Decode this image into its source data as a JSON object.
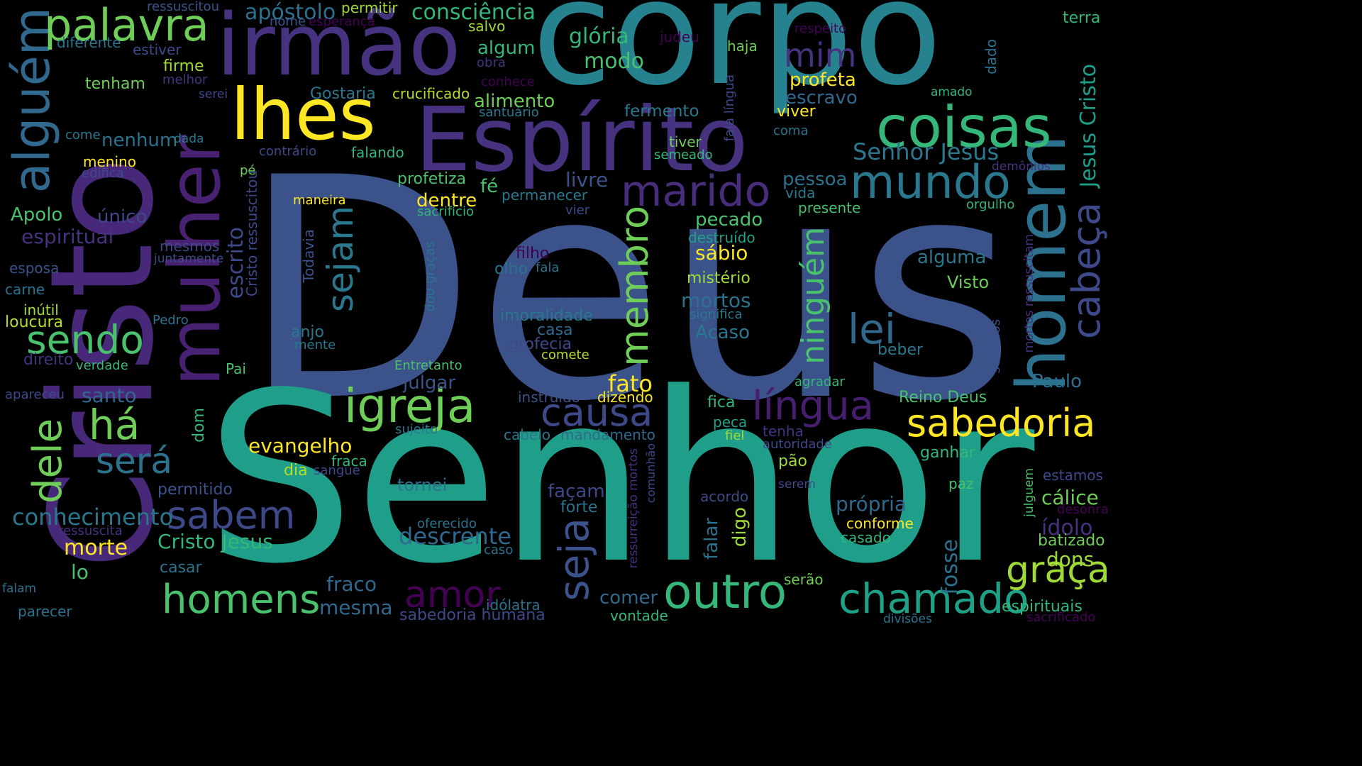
{
  "palette": [
    "#440154",
    "#46327e",
    "#365c8d",
    "#277f8e",
    "#1fa187",
    "#4ac16d",
    "#a0da39",
    "#fde725"
  ],
  "words": [
    {
      "text": "Deus",
      "color": "#3b528b"
    },
    {
      "text": "Senhor",
      "color": "#1f9e89"
    },
    {
      "text": "corpo",
      "color": "#26828e"
    },
    {
      "text": "Cristo",
      "color": "#482878"
    },
    {
      "text": "Espírito",
      "color": "#46327e"
    },
    {
      "text": "irmão",
      "color": "#46327e"
    },
    {
      "text": "mulher",
      "color": "#482173"
    },
    {
      "text": "homem",
      "color": "#2c728e"
    },
    {
      "text": "lhes",
      "color": "#fde725"
    },
    {
      "text": "alguém",
      "color": "#31688e"
    },
    {
      "text": "coisas",
      "color": "#35b779"
    },
    {
      "text": "palavra",
      "color": "#6ece58"
    },
    {
      "text": "mundo",
      "color": "#2a788e"
    },
    {
      "text": "marido",
      "color": "#472d7b"
    },
    {
      "text": "igreja",
      "color": "#6ece58"
    },
    {
      "text": "sabedoria",
      "color": "#fde725"
    },
    {
      "text": "membro",
      "color": "#6ece58"
    },
    {
      "text": "ninguém",
      "color": "#4ac16d"
    },
    {
      "text": "cabeça",
      "color": "#3e4989"
    },
    {
      "text": "sejam",
      "color": "#2a788e"
    },
    {
      "text": "outro",
      "color": "#35b779"
    },
    {
      "text": "chamado",
      "color": "#1fa187"
    },
    {
      "text": "homens",
      "color": "#4ac16d"
    },
    {
      "text": "seja",
      "color": "#3b528b"
    },
    {
      "text": "amor",
      "color": "#440154"
    },
    {
      "text": "sendo",
      "color": "#4ac16d"
    },
    {
      "text": "causa",
      "color": "#3e4989"
    },
    {
      "text": "língua",
      "color": "#481f70"
    },
    {
      "text": "sabem",
      "color": "#3e4989"
    },
    {
      "text": "dele",
      "color": "#6ece58"
    },
    {
      "text": "há",
      "color": "#6ece58"
    },
    {
      "text": "será",
      "color": "#2c728e"
    },
    {
      "text": "lei",
      "color": "#31688e"
    },
    {
      "text": "graça",
      "color": "#a0da39"
    },
    {
      "text": "mim",
      "color": "#46327e"
    },
    {
      "text": "Senhor Jesus",
      "color": "#2a788e"
    },
    {
      "text": "Jesus Cristo",
      "color": "#1f9e89"
    },
    {
      "text": "consciência",
      "color": "#35b779"
    },
    {
      "text": "apóstolo",
      "color": "#2c728e"
    },
    {
      "text": "glória",
      "color": "#35b779"
    },
    {
      "text": "modo",
      "color": "#4ac16d"
    },
    {
      "text": "algum",
      "color": "#35b779"
    },
    {
      "text": "profeta",
      "color": "#fde725"
    },
    {
      "text": "escravo",
      "color": "#31688e"
    },
    {
      "text": "viver",
      "color": "#fde725"
    },
    {
      "text": "alimento",
      "color": "#6ece58"
    },
    {
      "text": "fermento",
      "color": "#2a788e"
    },
    {
      "text": "terra",
      "color": "#35b779"
    },
    {
      "text": "dado",
      "color": "#2c728e"
    },
    {
      "text": "amado",
      "color": "#35b779"
    },
    {
      "text": "ressuscitou",
      "color": "#3b528b"
    },
    {
      "text": "permitir",
      "color": "#a0da39"
    },
    {
      "text": "nome",
      "color": "#3b528b"
    },
    {
      "text": "esperança",
      "color": "#440154"
    },
    {
      "text": "salvo",
      "color": "#a0da39"
    },
    {
      "text": "judeu",
      "color": "#440154"
    },
    {
      "text": "haja",
      "color": "#6ece58"
    },
    {
      "text": "respeito",
      "color": "#440154"
    },
    {
      "text": "diferente",
      "color": "#2c728e"
    },
    {
      "text": "estiver",
      "color": "#3e4989"
    },
    {
      "text": "obra",
      "color": "#46327e"
    },
    {
      "text": "conhece",
      "color": "#440154"
    },
    {
      "text": "firme",
      "color": "#a0da39"
    },
    {
      "text": "melhor",
      "color": "#46327e"
    },
    {
      "text": "tenham",
      "color": "#6ece58"
    },
    {
      "text": "serei",
      "color": "#3e4989"
    },
    {
      "text": "Gostaria",
      "color": "#2a788e"
    },
    {
      "text": "crucificado",
      "color": "#b5de2b"
    },
    {
      "text": "santuário",
      "color": "#2a788e"
    },
    {
      "text": "fala língua",
      "color": "#3e4989"
    },
    {
      "text": "coma",
      "color": "#2c728e"
    },
    {
      "text": "nenhum",
      "color": "#2c728e"
    },
    {
      "text": "come",
      "color": "#2a788e"
    },
    {
      "text": "dada",
      "color": "#2a788e"
    },
    {
      "text": "tiver",
      "color": "#6ece58"
    },
    {
      "text": "semeado",
      "color": "#35b779"
    },
    {
      "text": "falando",
      "color": "#35b779"
    },
    {
      "text": "menino",
      "color": "#fde725"
    },
    {
      "text": "edifica",
      "color": "#3e4989"
    },
    {
      "text": "contrário",
      "color": "#3e4989"
    },
    {
      "text": "pé",
      "color": "#6ece58"
    },
    {
      "text": "escrito",
      "color": "#3e4989"
    },
    {
      "text": "Cristo ressuscitou",
      "color": "#3e4989"
    },
    {
      "text": "profetiza",
      "color": "#4ac16d"
    },
    {
      "text": "livre",
      "color": "#3b528b"
    },
    {
      "text": "pessoa",
      "color": "#2c728e"
    },
    {
      "text": "vida",
      "color": "#2a788e"
    },
    {
      "text": "demônios",
      "color": "#46327e"
    },
    {
      "text": "fé",
      "color": "#4ac16d"
    },
    {
      "text": "dentre",
      "color": "#fde725"
    },
    {
      "text": "permanecer",
      "color": "#2a788e"
    },
    {
      "text": "presente",
      "color": "#4ac16d"
    },
    {
      "text": "Apolo",
      "color": "#4ac16d"
    },
    {
      "text": "único",
      "color": "#3e4989"
    },
    {
      "text": "maneira",
      "color": "#fde725"
    },
    {
      "text": "sacrifício",
      "color": "#35b779"
    },
    {
      "text": "vier",
      "color": "#3e4989"
    },
    {
      "text": "orgulho",
      "color": "#35b779"
    },
    {
      "text": "espiritual",
      "color": "#46327e"
    },
    {
      "text": "pecado",
      "color": "#4ac16d"
    },
    {
      "text": "destruído",
      "color": "#1fa187"
    },
    {
      "text": "sábio",
      "color": "#fde725"
    },
    {
      "text": "mesmos",
      "color": "#3e4989"
    },
    {
      "text": "juntamente",
      "color": "#3e4989"
    },
    {
      "text": "Todavia",
      "color": "#3b528b"
    },
    {
      "text": "dou graças",
      "color": "#2c728e"
    },
    {
      "text": "filho",
      "color": "#440154"
    },
    {
      "text": "olho",
      "color": "#2c728e"
    },
    {
      "text": "fala",
      "color": "#2c728e"
    },
    {
      "text": "alguma",
      "color": "#2a788e"
    },
    {
      "text": "esposa",
      "color": "#3b528b"
    },
    {
      "text": "mistério",
      "color": "#a0da39"
    },
    {
      "text": "Visto",
      "color": "#6ece58"
    },
    {
      "text": "mortos ressuscitam",
      "color": "#46327e"
    },
    {
      "text": "carne",
      "color": "#2c728e"
    },
    {
      "text": "mortos",
      "color": "#2c728e"
    },
    {
      "text": "significa",
      "color": "#2a788e"
    },
    {
      "text": "inútil",
      "color": "#a0da39"
    },
    {
      "text": "loucura",
      "color": "#b5de2b"
    },
    {
      "text": "imoralidade",
      "color": "#2a788e"
    },
    {
      "text": "Pedro",
      "color": "#2c728e"
    },
    {
      "text": "anjo",
      "color": "#2a788e"
    },
    {
      "text": "casa",
      "color": "#31688e"
    },
    {
      "text": "Acaso",
      "color": "#2a788e"
    },
    {
      "text": "mente",
      "color": "#2a788e"
    },
    {
      "text": "profecia",
      "color": "#3e4989"
    },
    {
      "text": "comete",
      "color": "#b5de2b"
    },
    {
      "text": "beber",
      "color": "#2a788e"
    },
    {
      "text": "seremos",
      "color": "#3b528b"
    },
    {
      "text": "direito",
      "color": "#46327e"
    },
    {
      "text": "verdade",
      "color": "#35b779"
    },
    {
      "text": "Pai",
      "color": "#4ac16d"
    },
    {
      "text": "Entretanto",
      "color": "#4ac16d"
    },
    {
      "text": "Paulo",
      "color": "#2c728e"
    },
    {
      "text": "julgar",
      "color": "#3b528b"
    },
    {
      "text": "fato",
      "color": "#fde725"
    },
    {
      "text": "agradar",
      "color": "#35b779"
    },
    {
      "text": "apareceu",
      "color": "#3e4989"
    },
    {
      "text": "santo",
      "color": "#31688e"
    },
    {
      "text": "instruído",
      "color": "#3b528b"
    },
    {
      "text": "dizendo",
      "color": "#fde725"
    },
    {
      "text": "Reino Deus",
      "color": "#4ac16d"
    },
    {
      "text": "dom",
      "color": "#35b779"
    },
    {
      "text": "fica",
      "color": "#35b779"
    },
    {
      "text": "sujeito",
      "color": "#2a788e"
    },
    {
      "text": "peca",
      "color": "#1fa187"
    },
    {
      "text": "tenha",
      "color": "#46327e"
    },
    {
      "text": "evangelho",
      "color": "#fde725"
    },
    {
      "text": "cabelo",
      "color": "#2a788e"
    },
    {
      "text": "mandamento",
      "color": "#31688e"
    },
    {
      "text": "fiel",
      "color": "#a0da39"
    },
    {
      "text": "autoridade",
      "color": "#3e4989"
    },
    {
      "text": "ganhar",
      "color": "#35b779"
    },
    {
      "text": "estamos",
      "color": "#3e4989"
    },
    {
      "text": "fraca",
      "color": "#35b779"
    },
    {
      "text": "dia",
      "color": "#b5de2b"
    },
    {
      "text": "sangue",
      "color": "#3e4989"
    },
    {
      "text": "pão",
      "color": "#a0da39"
    },
    {
      "text": "comunhão",
      "color": "#3e4989"
    },
    {
      "text": "serem",
      "color": "#3e4989"
    },
    {
      "text": "paz",
      "color": "#4ac16d"
    },
    {
      "text": "julguem",
      "color": "#4ac16d"
    },
    {
      "text": "cálice",
      "color": "#6ece58"
    },
    {
      "text": "desonra",
      "color": "#440154"
    },
    {
      "text": "permitido",
      "color": "#3b528b"
    },
    {
      "text": "tornei",
      "color": "#2c728e"
    },
    {
      "text": "façam",
      "color": "#3e4989"
    },
    {
      "text": "ressurreição mortos",
      "color": "#46327e"
    },
    {
      "text": "acordo",
      "color": "#3e4989"
    },
    {
      "text": "própria",
      "color": "#31688e"
    },
    {
      "text": "forte",
      "color": "#2c728e"
    },
    {
      "text": "ídolo",
      "color": "#46327e"
    },
    {
      "text": "conhecimento",
      "color": "#2a788e"
    },
    {
      "text": "ressuscita",
      "color": "#46327e"
    },
    {
      "text": "oferecido",
      "color": "#2c728e"
    },
    {
      "text": "descrente",
      "color": "#31688e"
    },
    {
      "text": "caso",
      "color": "#2c728e"
    },
    {
      "text": "falar",
      "color": "#2c728e"
    },
    {
      "text": "digo",
      "color": "#a0da39"
    },
    {
      "text": "conforme",
      "color": "#fde725"
    },
    {
      "text": "casado",
      "color": "#35b779"
    },
    {
      "text": "batizado",
      "color": "#6ece58"
    },
    {
      "text": "morte",
      "color": "#fde725"
    },
    {
      "text": "Cristo Jesus",
      "color": "#35b779"
    },
    {
      "text": "lo",
      "color": "#4ac16d"
    },
    {
      "text": "casar",
      "color": "#2c728e"
    },
    {
      "text": "fosse",
      "color": "#2c728e"
    },
    {
      "text": "dons",
      "color": "#a0da39"
    },
    {
      "text": "falam",
      "color": "#2c728e"
    },
    {
      "text": "fraco",
      "color": "#31688e"
    },
    {
      "text": "comer",
      "color": "#31688e"
    },
    {
      "text": "serão",
      "color": "#6ece58"
    },
    {
      "text": "mesma",
      "color": "#31688e"
    },
    {
      "text": "idólatra",
      "color": "#2c728e"
    },
    {
      "text": "vontade",
      "color": "#35b779"
    },
    {
      "text": "espirituais",
      "color": "#35b779"
    },
    {
      "text": "parecer",
      "color": "#2c728e"
    },
    {
      "text": "sabedoria humana",
      "color": "#3e4989"
    },
    {
      "text": "divisões",
      "color": "#2c728e"
    },
    {
      "text": "sacrificado",
      "color": "#440154"
    }
  ]
}
